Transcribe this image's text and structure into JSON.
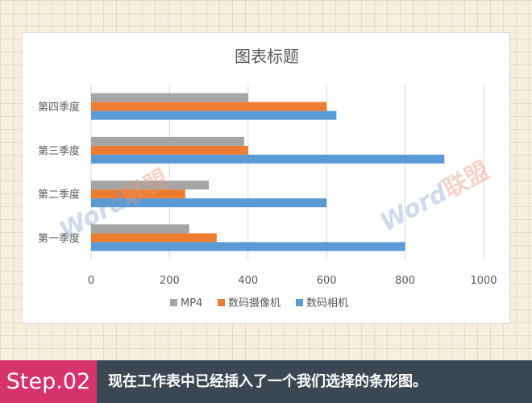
{
  "colors": {
    "series_mp4": "#a5a5a5",
    "series_camcorder": "#ed7d31",
    "series_camera": "#5b9bd5",
    "step_badge": "#d6336c",
    "footer_bg": "#3b4853"
  },
  "chart_data": {
    "type": "bar",
    "orientation": "horizontal",
    "title": "图表标题",
    "categories": [
      "第一季度",
      "第二季度",
      "第三季度",
      "第四季度"
    ],
    "series": [
      {
        "name": "数码相机",
        "values": [
          800,
          600,
          900,
          625
        ]
      },
      {
        "name": "数码摄像机",
        "values": [
          320,
          240,
          400,
          600
        ]
      },
      {
        "name": "MP4",
        "values": [
          250,
          300,
          390,
          400
        ]
      }
    ],
    "legend_order": [
      "MP4",
      "数码摄像机",
      "数码相机"
    ],
    "xlim": [
      0,
      1000
    ],
    "xticks": [
      0,
      200,
      400,
      600,
      800,
      1000
    ],
    "grid": "vertical",
    "legend_position": "bottom"
  },
  "watermark": {
    "latin": "Word",
    "cn": "联盟"
  },
  "footer": {
    "step_label": "Step.02",
    "caption": "现在工作表中已经插入了一个我们选择的条形图。"
  }
}
